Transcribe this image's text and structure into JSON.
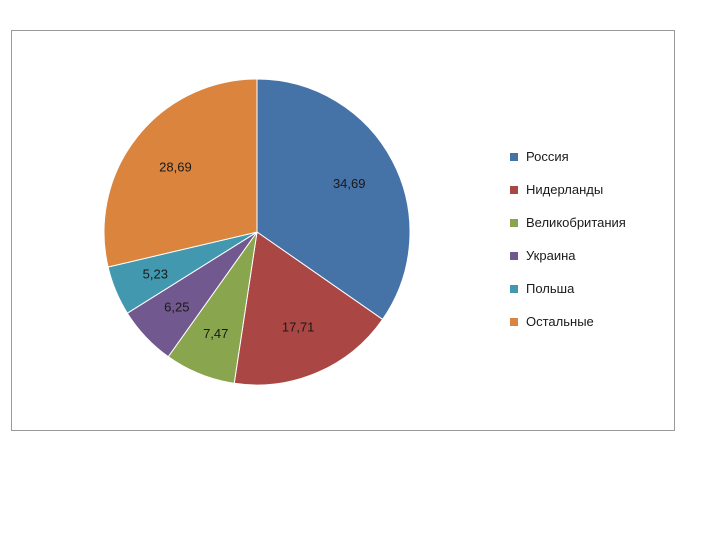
{
  "chart_data": {
    "type": "pie",
    "categories": [
      "Россия",
      "Нидерланды",
      "Великобритания",
      "Украина",
      "Польша",
      "Остальные"
    ],
    "values": [
      34.69,
      17.71,
      7.47,
      6.25,
      5.23,
      28.69
    ],
    "data_labels": [
      "34,69",
      "17,71",
      "7,47",
      "6,25",
      "5,23",
      "28,69"
    ],
    "colors": [
      "#4572A7",
      "#AA4643",
      "#89A54E",
      "#71588F",
      "#4198AF",
      "#DB843D"
    ],
    "legend_position": "right",
    "start_angle_deg": 0,
    "direction": "clockwise"
  }
}
